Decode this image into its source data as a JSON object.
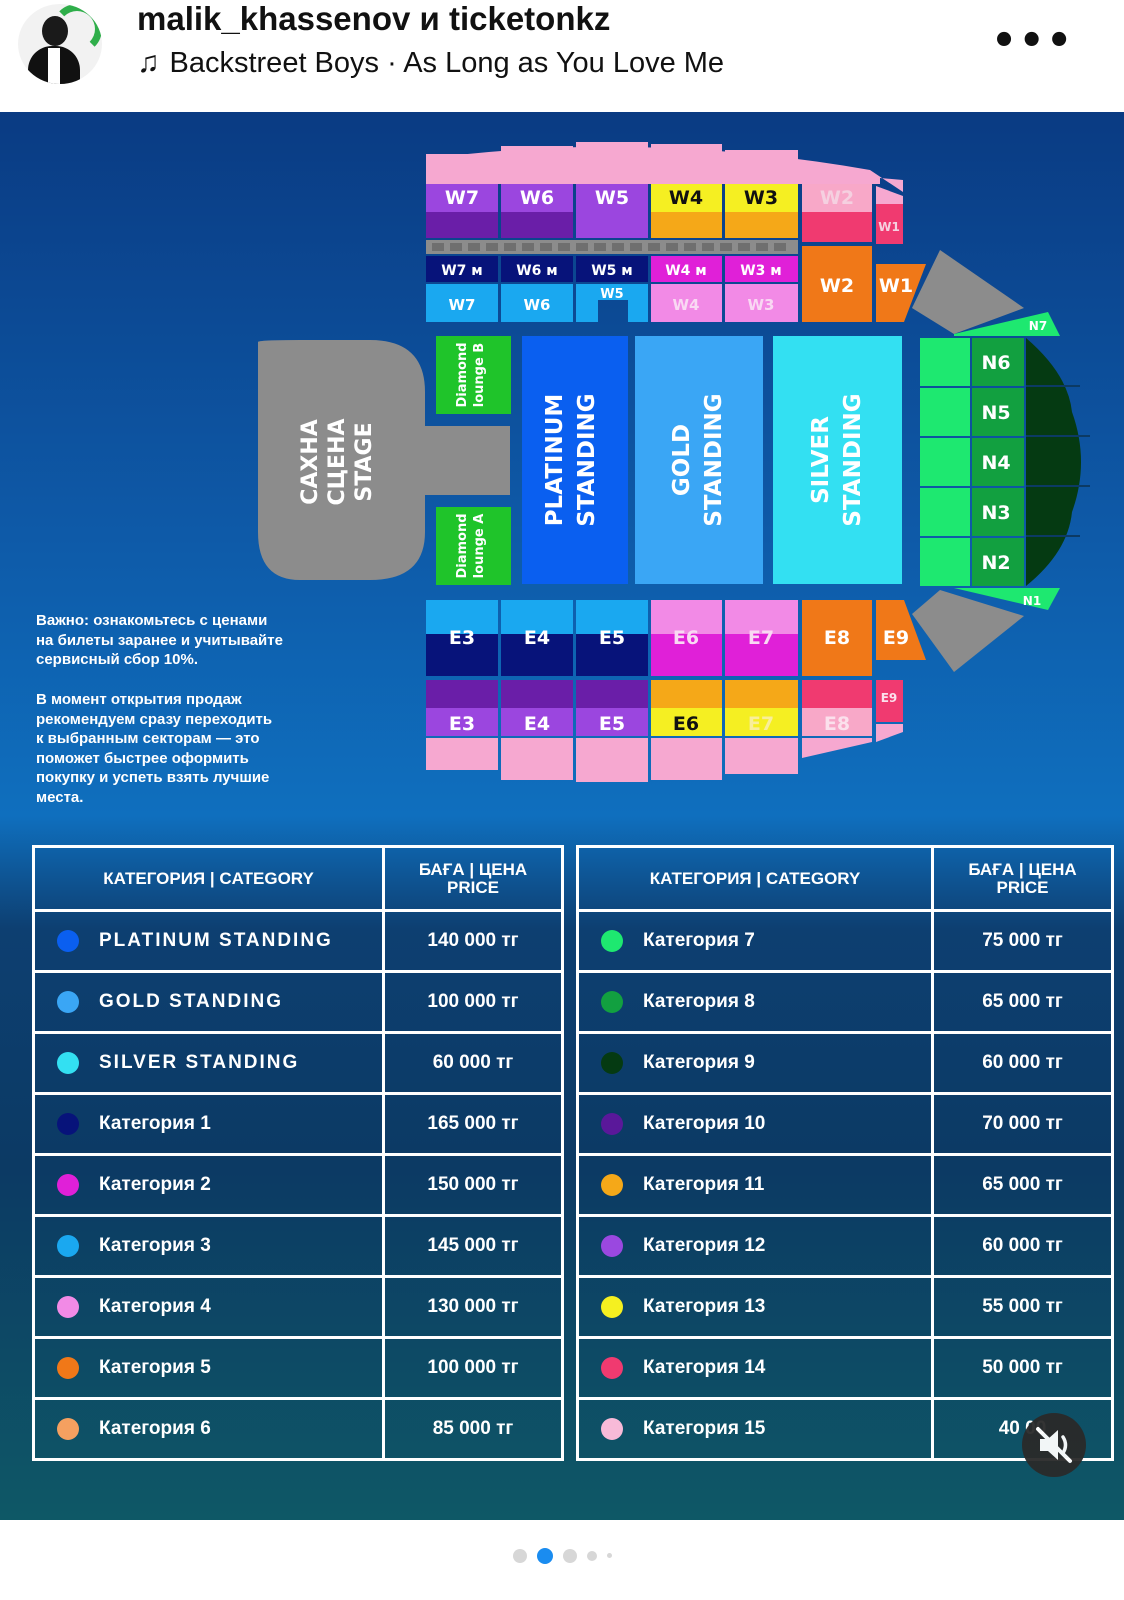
{
  "header": {
    "title": "malik_khassenov и ticketonkz",
    "song": "Backstreet Boys · As Long as You Love Me",
    "icons": {
      "avatar": "avatar",
      "note": "music-note-icon",
      "more": "more-icon"
    }
  },
  "map": {
    "stage": [
      "САХНА",
      "СЦЕНА",
      "STAGE"
    ],
    "standing": {
      "platinum": [
        "PLATINUM",
        "STANDING"
      ],
      "gold": [
        "GOLD",
        "STANDING"
      ],
      "silver": [
        "SILVER",
        "STANDING"
      ]
    },
    "lounges": {
      "b": [
        "Diamond",
        "lounge B"
      ],
      "a": [
        "Diamond",
        "lounge A"
      ]
    },
    "west_top": [
      "W7",
      "W6",
      "W5",
      "W4",
      "W3",
      "W2",
      "W1"
    ],
    "west_m": [
      "W7 м",
      "W6 м",
      "W5 м",
      "W4 м",
      "W3 м"
    ],
    "west_lower": [
      "W7",
      "W6",
      "W5",
      "W4",
      "W3",
      "W2",
      "W1"
    ],
    "north": [
      "N7",
      "N6",
      "N5",
      "N4",
      "N3",
      "N2",
      "N1"
    ],
    "east_upper": [
      "E3",
      "E4",
      "E5",
      "E6",
      "E7",
      "E8",
      "E9"
    ],
    "east_lower": [
      "E3",
      "E4",
      "E5",
      "E6",
      "E7",
      "E8",
      "E9"
    ]
  },
  "notes": {
    "p1": [
      "Важно: ознакомьтесь с ценами",
      "на билеты заранее и учитывайте",
      "сервисный сбор 10%."
    ],
    "p2": [
      "В момент открытия продаж",
      "рекомендуем сразу переходить",
      "к выбранным секторам — это",
      "поможет быстрее оформить",
      "покупку и успеть взять лучшие",
      "места."
    ]
  },
  "tables": {
    "header_category": "КАТЕГОРИЯ | CATEGORY",
    "header_price_1": "БАҒА | ЦЕНА",
    "header_price_2": "PRICE",
    "left": [
      {
        "name": "PLATINUM STANDING",
        "price": "140 000 тг",
        "color": "#0a5ff0"
      },
      {
        "name": "GOLD STANDING",
        "price": "100 000 тг",
        "color": "#3aa6f5"
      },
      {
        "name": "SILVER STANDING",
        "price": "60 000 тг",
        "color": "#33e0f2"
      },
      {
        "name": "Категория 1",
        "price": "165 000 тг",
        "color": "#07137a"
      },
      {
        "name": "Категория 2",
        "price": "150 000 тг",
        "color": "#e020d8"
      },
      {
        "name": "Категория 3",
        "price": "145 000 тг",
        "color": "#1aa8f0"
      },
      {
        "name": "Категория 4",
        "price": "130 000 тг",
        "color": "#f28ae6"
      },
      {
        "name": "Категория 5",
        "price": "100 000 тг",
        "color": "#f07818"
      },
      {
        "name": "Категория 6",
        "price": "85 000 тг",
        "color": "#f5a060"
      }
    ],
    "right": [
      {
        "name": "Категория 7",
        "price": "75 000 тг",
        "color": "#1ee870"
      },
      {
        "name": "Категория 8",
        "price": "65 000 тг",
        "color": "#12a040"
      },
      {
        "name": "Категория 9",
        "price": "60 000 тг",
        "color": "#053a12"
      },
      {
        "name": "Категория 10",
        "price": "70 000 тг",
        "color": "#5a189a"
      },
      {
        "name": "Категория 11",
        "price": "65 000 тг",
        "color": "#f5a818"
      },
      {
        "name": "Категория 12",
        "price": "60 000 тг",
        "color": "#9a48e0"
      },
      {
        "name": "Категория 13",
        "price": "55 000 тг",
        "color": "#f5f020"
      },
      {
        "name": "Категория 14",
        "price": "50 000 тг",
        "color": "#f03a70"
      },
      {
        "name": "Категория 15",
        "price": "40 00",
        "color": "#f8bad8"
      }
    ]
  },
  "carousel": {
    "active_index": 1,
    "count": 5
  }
}
